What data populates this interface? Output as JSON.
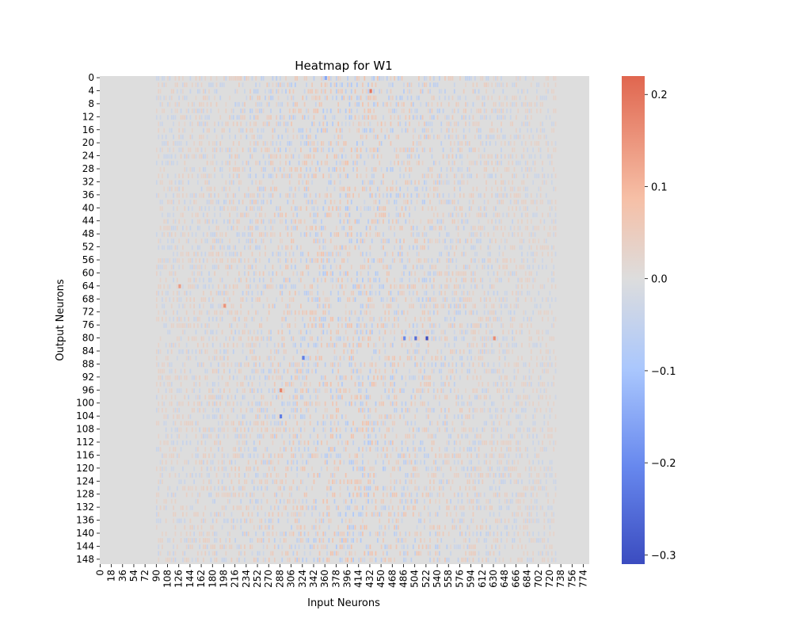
{
  "chart_data": {
    "type": "heatmap",
    "title": "Heatmap for W1",
    "xlabel": "Input Neurons",
    "ylabel": "Output Neurons",
    "n_cols": 784,
    "n_rows": 150,
    "x_ticks": [
      "0",
      "18",
      "36",
      "54",
      "72",
      "90",
      "108",
      "126",
      "144",
      "162",
      "180",
      "198",
      "216",
      "234",
      "252",
      "270",
      "288",
      "306",
      "324",
      "342",
      "360",
      "378",
      "396",
      "414",
      "432",
      "450",
      "468",
      "486",
      "504",
      "522",
      "540",
      "558",
      "576",
      "594",
      "612",
      "630",
      "648",
      "666",
      "684",
      "702",
      "720",
      "738",
      "756",
      "774"
    ],
    "y_ticks": [
      "0",
      "4",
      "8",
      "12",
      "16",
      "20",
      "24",
      "28",
      "32",
      "36",
      "40",
      "44",
      "48",
      "52",
      "56",
      "60",
      "64",
      "68",
      "72",
      "76",
      "80",
      "84",
      "88",
      "92",
      "96",
      "100",
      "104",
      "108",
      "112",
      "116",
      "120",
      "124",
      "128",
      "132",
      "136",
      "140",
      "144",
      "148"
    ],
    "colorbar": {
      "colormap": "coolwarm",
      "vmin": -0.31,
      "vmax": 0.22,
      "center": 0.0,
      "ticks": [
        "0.2",
        "0.1",
        "0.0",
        "−0.1",
        "−0.2",
        "−0.3"
      ],
      "tick_values": [
        0.2,
        0.1,
        0.0,
        -0.1,
        -0.2,
        -0.3
      ]
    },
    "colors": {
      "low": "#3b4cc0",
      "mid": "#dddddd",
      "high": "#e0664f"
    },
    "values_note_visible": "",
    "highlights": [
      {
        "row": 80,
        "col": 522,
        "value": -0.31
      },
      {
        "row": 80,
        "col": 504,
        "value": -0.25
      },
      {
        "row": 80,
        "col": 486,
        "value": -0.2
      },
      {
        "row": 104,
        "col": 288,
        "value": -0.22
      },
      {
        "row": 86,
        "col": 324,
        "value": -0.22
      },
      {
        "row": 96,
        "col": 288,
        "value": 0.18
      },
      {
        "row": 4,
        "col": 432,
        "value": 0.2
      },
      {
        "row": 80,
        "col": 630,
        "value": 0.17
      },
      {
        "row": 70,
        "col": 198,
        "value": 0.16
      },
      {
        "row": 64,
        "col": 126,
        "value": 0.15
      },
      {
        "row": 0,
        "col": 360,
        "value": -0.15
      }
    ]
  }
}
